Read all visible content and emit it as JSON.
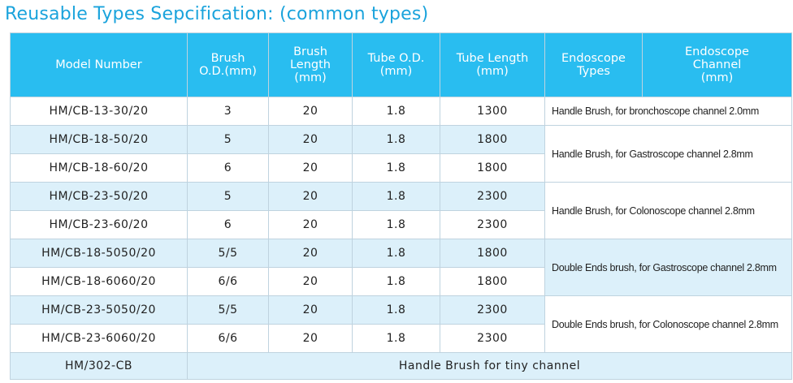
{
  "page_title": "Reusable Types Sepcification: (common types)",
  "headers": {
    "model": "Model Number",
    "brush_od": [
      "Brush",
      "O.D.(mm)"
    ],
    "brush_length": [
      "Brush",
      "Length",
      "(mm)"
    ],
    "tube_od": [
      "Tube O.D.",
      "(mm)"
    ],
    "tube_length": [
      "Tube Length",
      "(mm)"
    ],
    "endoscope_types": [
      "Endoscope",
      "Types"
    ],
    "endoscope_channel": [
      "Endoscope",
      "Channel",
      "(mm)"
    ]
  },
  "rows": [
    {
      "model": "HM/CB-13-30/20",
      "brush_od": "3",
      "brush_length": "20",
      "tube_od": "1.8",
      "tube_length": "1300"
    },
    {
      "model": "HM/CB-18-50/20",
      "brush_od": "5",
      "brush_length": "20",
      "tube_od": "1.8",
      "tube_length": "1800"
    },
    {
      "model": "HM/CB-18-60/20",
      "brush_od": "6",
      "brush_length": "20",
      "tube_od": "1.8",
      "tube_length": "1800"
    },
    {
      "model": "HM/CB-23-50/20",
      "brush_od": "5",
      "brush_length": "20",
      "tube_od": "1.8",
      "tube_length": "2300"
    },
    {
      "model": "HM/CB-23-60/20",
      "brush_od": "6",
      "brush_length": "20",
      "tube_od": "1.8",
      "tube_length": "2300"
    },
    {
      "model": "HM/CB-18-5050/20",
      "brush_od": "5/5",
      "brush_length": "20",
      "tube_od": "1.8",
      "tube_length": "1800"
    },
    {
      "model": "HM/CB-18-6060/20",
      "brush_od": "6/6",
      "brush_length": "20",
      "tube_od": "1.8",
      "tube_length": "1800"
    },
    {
      "model": "HM/CB-23-5050/20",
      "brush_od": "5/5",
      "brush_length": "20",
      "tube_od": "1.8",
      "tube_length": "2300"
    },
    {
      "model": "HM/CB-23-6060/20",
      "brush_od": "6/6",
      "brush_length": "20",
      "tube_od": "1.8",
      "tube_length": "2300"
    }
  ],
  "notes": [
    "Handle Brush, for bronchoscope channel 2.0mm",
    "Handle Brush, for Gastroscope channel 2.8mm",
    "Handle Brush, for Colonoscope channel 2.8mm",
    "Double Ends brush, for Gastroscope channel 2.8mm",
    "Double Ends brush, for Colonoscope channel 2.8mm"
  ],
  "footer_row": {
    "model": "HM/302-CB",
    "description": "Handle Brush for tiny channel"
  },
  "colors": {
    "title": "#1aa3dc",
    "header_bg": "#29bdf0",
    "shade_row": "#dcf0fa",
    "border": "#bfd3df"
  }
}
